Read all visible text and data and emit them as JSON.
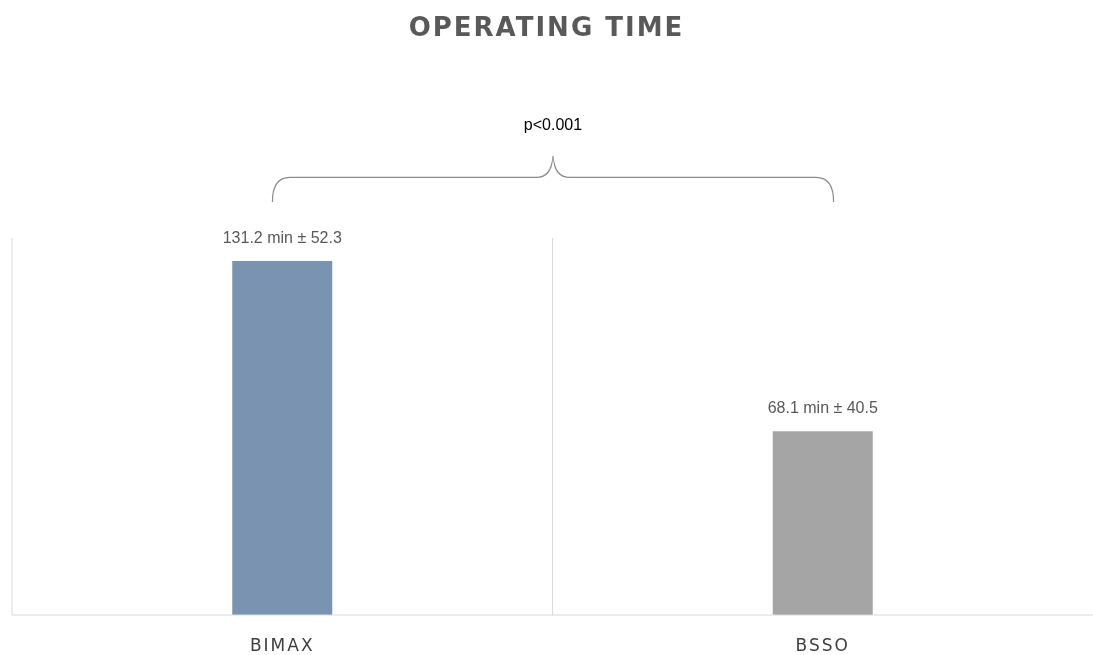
{
  "chart_data": {
    "type": "bar",
    "title": "OPERATING TIME",
    "categories": [
      "BIMAX",
      "BSSO"
    ],
    "values": [
      131.2,
      68.1
    ],
    "colors": [
      "#7a93b1",
      "#a5a5a5"
    ],
    "value_labels": [
      "131.2 min ± 52.3",
      "68.1 min ± 40.5"
    ],
    "annotations": [
      "p<0.001"
    ],
    "grid": "x"
  }
}
